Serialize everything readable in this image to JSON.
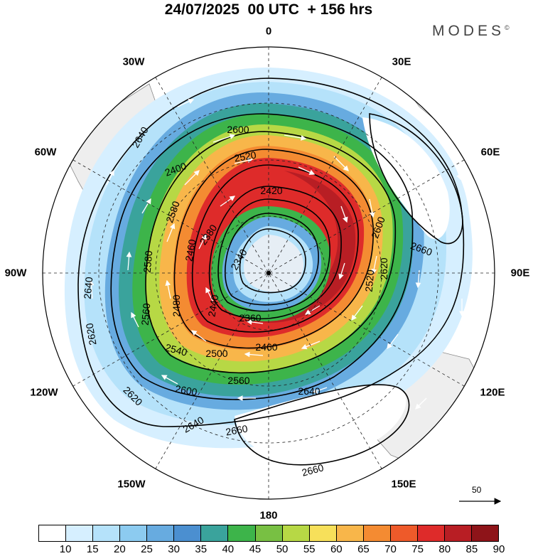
{
  "title": "24/07/2025  00 UTC  + 156 hrs",
  "brand": "MODES",
  "brand_mark": "©",
  "longitude_labels": {
    "top": "0",
    "top_right": "30E",
    "right_upper": "60E",
    "right": "90E",
    "right_lower": "120E",
    "bottom_right": "150E",
    "bottom": "180",
    "bottom_left": "150W",
    "left_lower": "120W",
    "left": "90W",
    "left_upper": "60W",
    "top_left": "30W"
  },
  "contour_labels": [
    "2340",
    "2360",
    "2380",
    "2400",
    "2420",
    "2440",
    "2460",
    "2480",
    "2500",
    "2520",
    "2540",
    "2560",
    "2580",
    "2600",
    "2620",
    "2640",
    "2660"
  ],
  "vector_reference": "50",
  "colorbar": {
    "levels": [
      "10",
      "15",
      "20",
      "25",
      "30",
      "35",
      "40",
      "45",
      "50",
      "55",
      "60",
      "65",
      "70",
      "75",
      "80",
      "85",
      "90"
    ],
    "colors": [
      "#ffffff",
      "#d6efff",
      "#b5e2fa",
      "#8ccbf0",
      "#67abe0",
      "#4b8fd0",
      "#3aa39c",
      "#3db44a",
      "#78c043",
      "#b7d845",
      "#f7e05a",
      "#f8b64a",
      "#f48b32",
      "#ee5a2a",
      "#de2b2a",
      "#b81e24",
      "#8e1419"
    ]
  },
  "colors": {
    "land": "#eeeeee",
    "coast": "#888888"
  }
}
